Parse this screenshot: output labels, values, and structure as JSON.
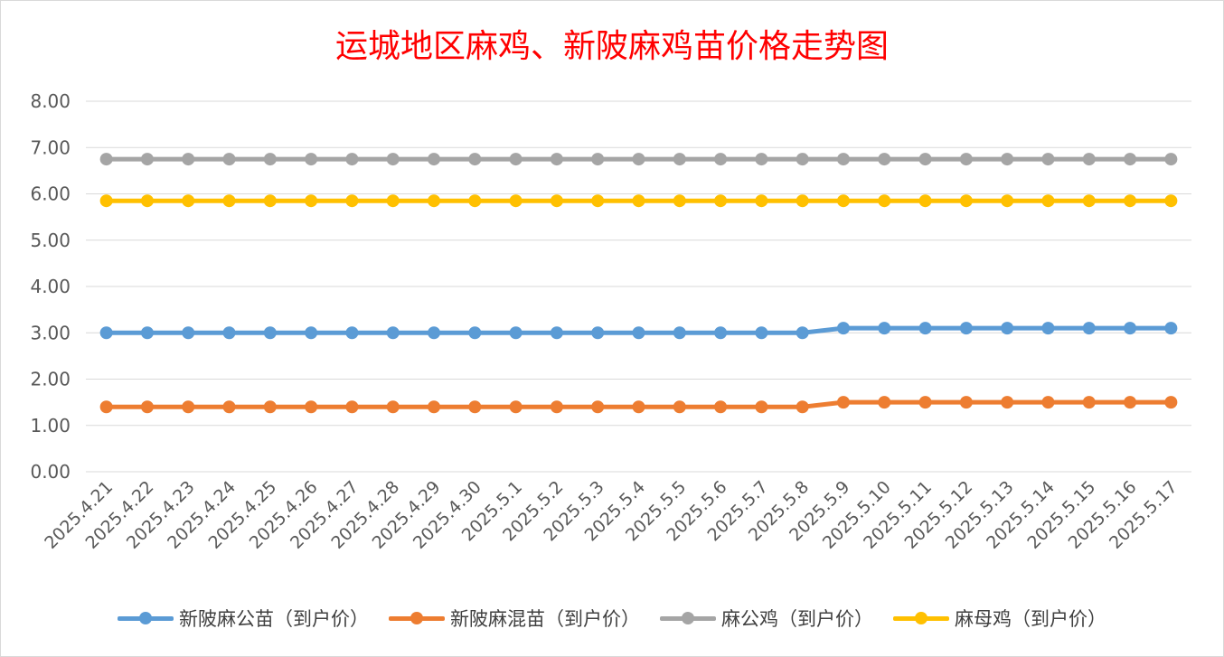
{
  "chart_data": {
    "type": "line",
    "title": "运城地区麻鸡、新陂麻鸡苗价格走势图",
    "xlabel": "",
    "ylabel": "",
    "ylim": [
      0,
      8
    ],
    "yticks": [
      "0.00",
      "1.00",
      "2.00",
      "3.00",
      "4.00",
      "5.00",
      "6.00",
      "7.00",
      "8.00"
    ],
    "grid": true,
    "legend_position": "bottom",
    "categories": [
      "2025.4.21",
      "2025.4.22",
      "2025.4.23",
      "2025.4.24",
      "2025.4.25",
      "2025.4.26",
      "2025.4.27",
      "2025.4.28",
      "2025.4.29",
      "2025.4.30",
      "2025.5.1",
      "2025.5.2",
      "2025.5.3",
      "2025.5.4",
      "2025.5.5",
      "2025.5.6",
      "2025.5.7",
      "2025.5.8",
      "2025.5.9",
      "2025.5.10",
      "2025.5.11",
      "2025.5.12",
      "2025.5.13",
      "2025.5.14",
      "2025.5.15",
      "2025.5.16",
      "2025.5.17"
    ],
    "series": [
      {
        "name": "新陂麻公苗（到户价）",
        "color": "#5b9bd5",
        "values": [
          3.0,
          3.0,
          3.0,
          3.0,
          3.0,
          3.0,
          3.0,
          3.0,
          3.0,
          3.0,
          3.0,
          3.0,
          3.0,
          3.0,
          3.0,
          3.0,
          3.0,
          3.0,
          3.1,
          3.1,
          3.1,
          3.1,
          3.1,
          3.1,
          3.1,
          3.1,
          3.1
        ]
      },
      {
        "name": "新陂麻混苗（到户价）",
        "color": "#ed7d31",
        "values": [
          1.4,
          1.4,
          1.4,
          1.4,
          1.4,
          1.4,
          1.4,
          1.4,
          1.4,
          1.4,
          1.4,
          1.4,
          1.4,
          1.4,
          1.4,
          1.4,
          1.4,
          1.4,
          1.5,
          1.5,
          1.5,
          1.5,
          1.5,
          1.5,
          1.5,
          1.5,
          1.5
        ]
      },
      {
        "name": "麻公鸡（到户价）",
        "color": "#a5a5a5",
        "values": [
          6.75,
          6.75,
          6.75,
          6.75,
          6.75,
          6.75,
          6.75,
          6.75,
          6.75,
          6.75,
          6.75,
          6.75,
          6.75,
          6.75,
          6.75,
          6.75,
          6.75,
          6.75,
          6.75,
          6.75,
          6.75,
          6.75,
          6.75,
          6.75,
          6.75,
          6.75,
          6.75
        ]
      },
      {
        "name": "麻母鸡（到户价）",
        "color": "#ffc000",
        "values": [
          5.85,
          5.85,
          5.85,
          5.85,
          5.85,
          5.85,
          5.85,
          5.85,
          5.85,
          5.85,
          5.85,
          5.85,
          5.85,
          5.85,
          5.85,
          5.85,
          5.85,
          5.85,
          5.85,
          5.85,
          5.85,
          5.85,
          5.85,
          5.85,
          5.85,
          5.85,
          5.85
        ]
      }
    ]
  }
}
